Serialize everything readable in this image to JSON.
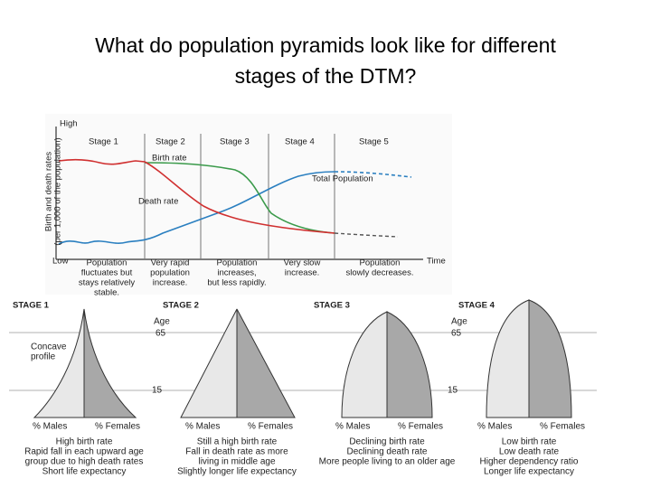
{
  "title": [
    "What do population pyramids look like for different",
    "stages of the DTM?"
  ],
  "dtm": {
    "axis_high": "High",
    "axis_low": "Low",
    "axis_time": "Time",
    "y_axis_label": [
      "Birth and death rates",
      "(per 1,000 of the population)"
    ],
    "stages": [
      "Stage 1",
      "Stage 2",
      "Stage 3",
      "Stage 4",
      "Stage 5"
    ],
    "birth_rate": "Birth rate",
    "death_rate": "Death rate",
    "total_population": "Total Population",
    "descriptions": [
      [
        "Population",
        "fluctuates but",
        "stays relatively",
        "stable."
      ],
      [
        "Very rapid",
        "population",
        "increase."
      ],
      [
        "Population",
        "increases,",
        "but less rapidly."
      ],
      [
        "Very slow",
        "increase."
      ],
      [
        "Population",
        "slowly decreases."
      ]
    ]
  },
  "pyramids": [
    {
      "stage": "STAGE 1",
      "males": "% Males",
      "females": "% Females",
      "profile": [
        "Concave",
        "profile"
      ],
      "notes": [
        "High birth rate",
        "Rapid fall in each upward age",
        "group due to high death rates",
        "Short life expectancy"
      ]
    },
    {
      "stage": "STAGE 2",
      "males": "% Males",
      "females": "% Females",
      "age": "Age",
      "age_high": "65",
      "age_low": "15",
      "notes": [
        "Still a high birth rate",
        "Fall in death rate as more",
        "living in middle age",
        "Slightly longer life expectancy"
      ]
    },
    {
      "stage": "STAGE 3",
      "males": "% Males",
      "females": "% Females",
      "notes": [
        "Declining birth rate",
        "Declining death rate",
        "More people living to an older age"
      ]
    },
    {
      "stage": "STAGE 4",
      "males": "% Males",
      "females": "% Females",
      "age": "Age",
      "age_high": "65",
      "age_low": "15",
      "notes": [
        "Low birth rate",
        "Low death rate",
        "Higher dependency ratio",
        "Longer life expectancy"
      ]
    }
  ]
}
